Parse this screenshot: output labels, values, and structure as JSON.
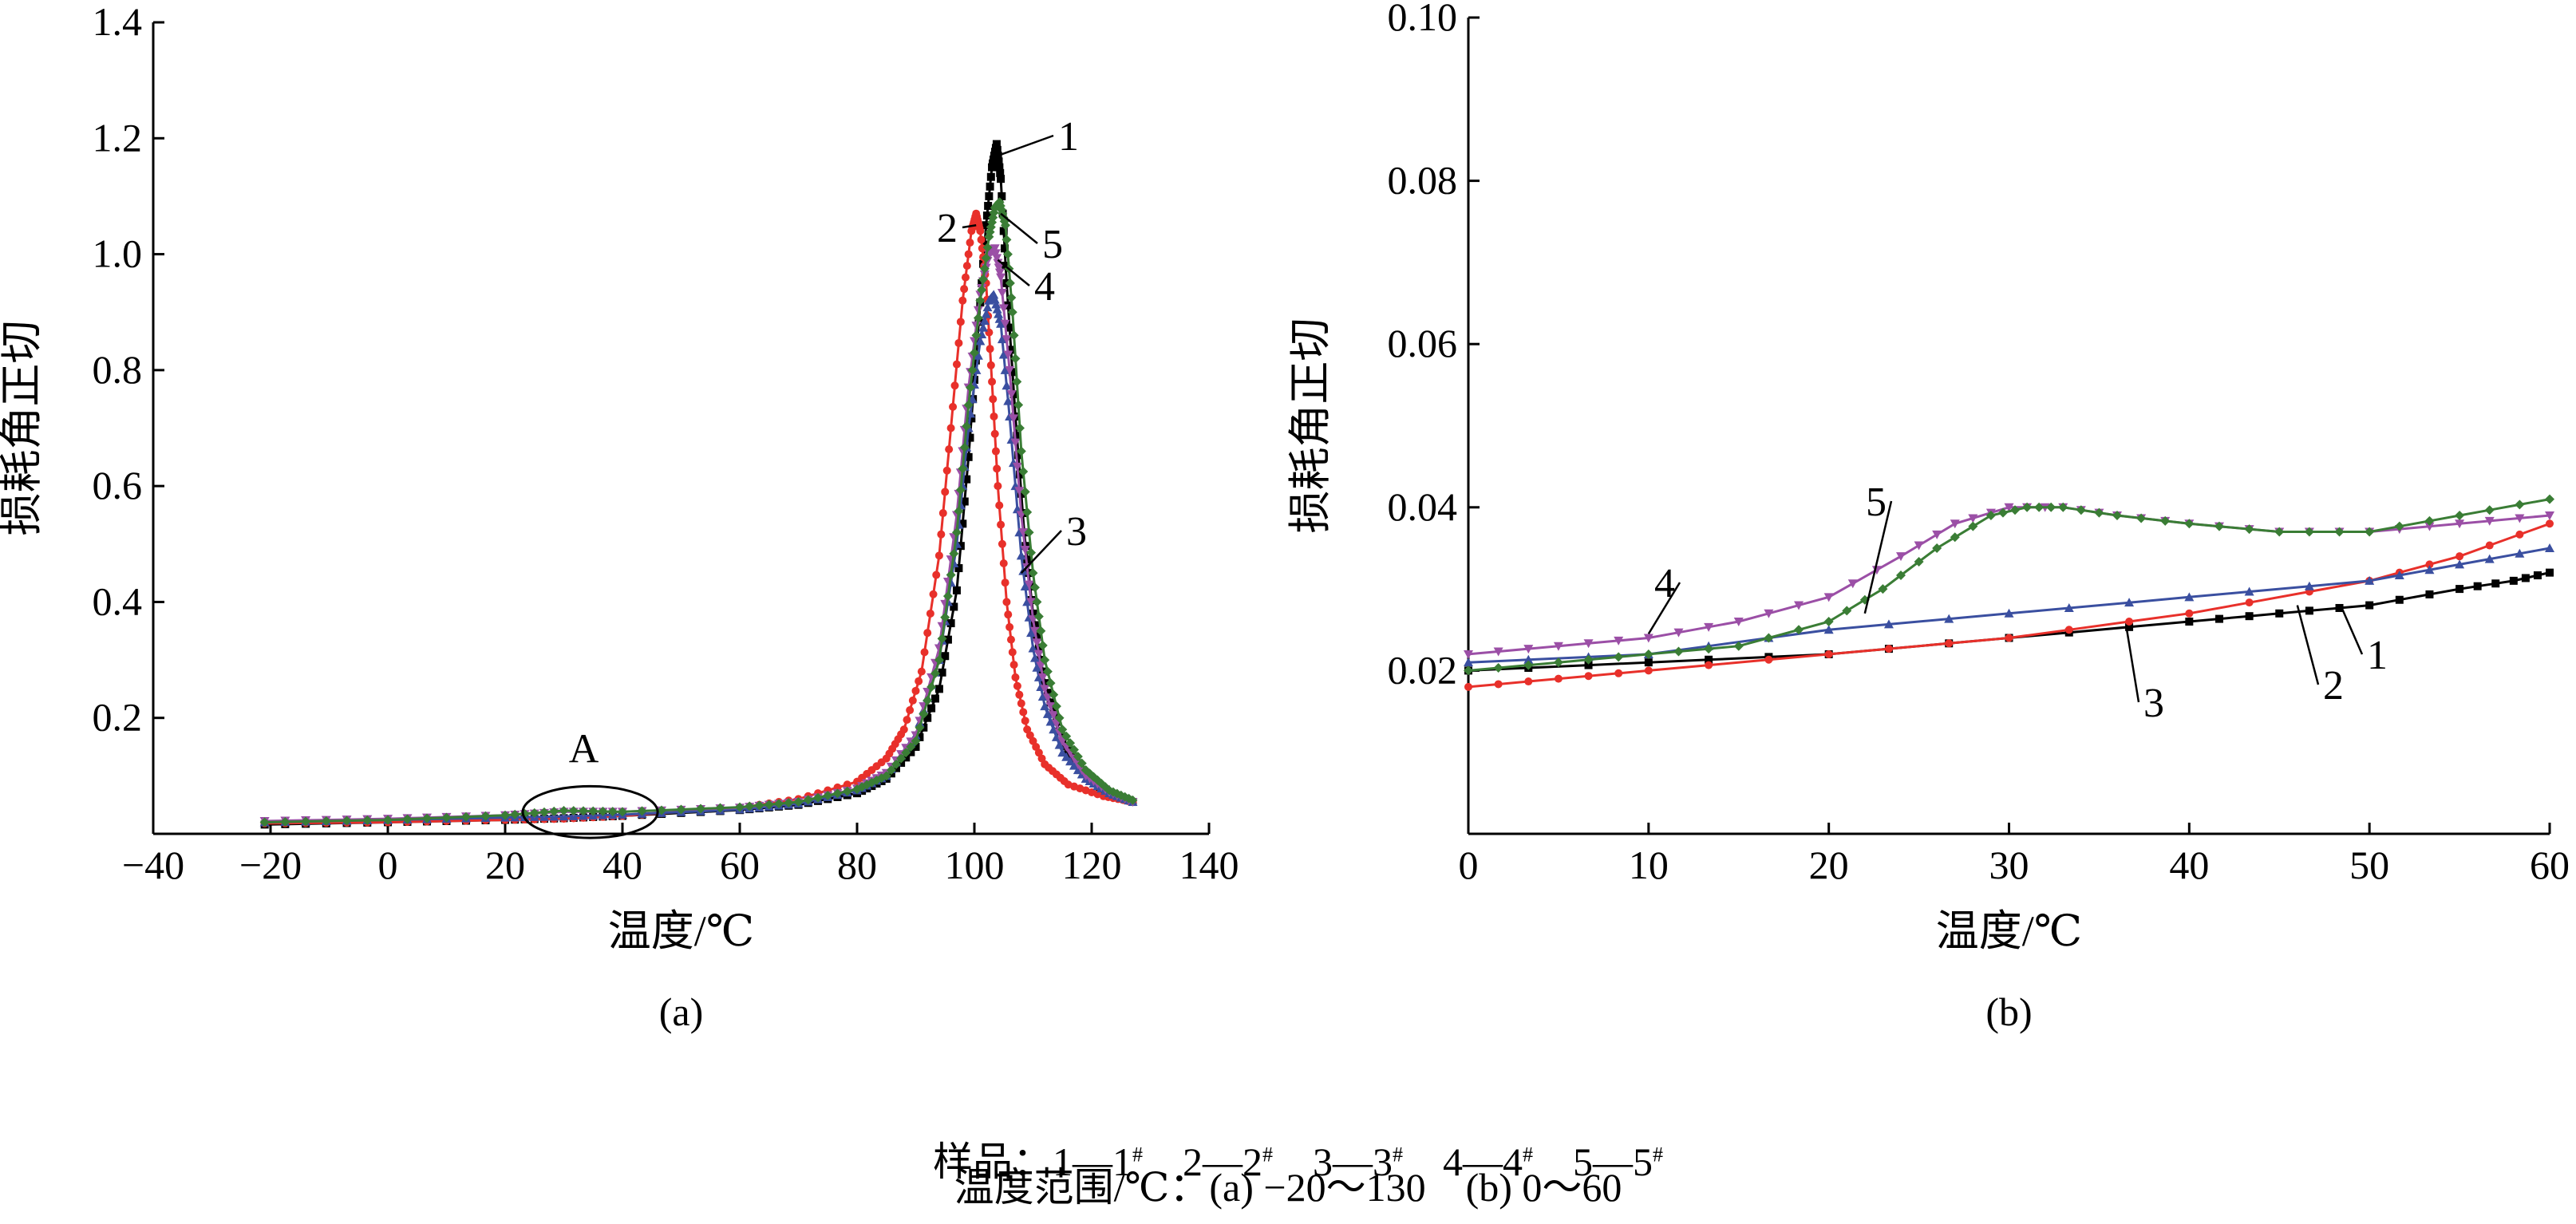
{
  "chart_data": [
    {
      "type": "line",
      "panel_label": "(a)",
      "xlabel": "温度/℃",
      "ylabel": "损耗角正切",
      "xlim": [
        -40,
        140
      ],
      "ylim": [
        0,
        1.4
      ],
      "x_ticks": [
        -40,
        -20,
        0,
        20,
        40,
        60,
        80,
        100,
        120,
        140
      ],
      "x_tick_labels": [
        "−40",
        "−20",
        "0",
        "20",
        "40",
        "60",
        "80",
        "100",
        "120",
        "140"
      ],
      "y_ticks": [
        0.2,
        0.4,
        0.6,
        0.8,
        1.0,
        1.2,
        1.4
      ],
      "y_tick_labels": [
        "0.2",
        "0.4",
        "0.6",
        "0.8",
        "1.0",
        "1.2",
        "1.4"
      ],
      "grid": false,
      "annotation": {
        "text": "A",
        "region_x": [
          23,
          46
        ],
        "region_y": [
          0.015,
          0.06
        ]
      },
      "series": [
        {
          "name": "1",
          "color": "#000000",
          "marker": "square",
          "points": [
            [
              -21,
              0.016
            ],
            [
              0,
              0.02
            ],
            [
              20,
              0.024
            ],
            [
              30,
              0.027
            ],
            [
              40,
              0.031
            ],
            [
              60,
              0.041
            ],
            [
              70,
              0.05
            ],
            [
              80,
              0.07
            ],
            [
              85,
              0.095
            ],
            [
              90,
              0.15
            ],
            [
              94,
              0.25
            ],
            [
              97,
              0.42
            ],
            [
              99,
              0.65
            ],
            [
              100.5,
              0.85
            ],
            [
              102,
              1.05
            ],
            [
              103,
              1.15
            ],
            [
              103.8,
              1.19
            ],
            [
              104.5,
              1.13
            ],
            [
              105.5,
              0.95
            ],
            [
              107,
              0.72
            ],
            [
              108.5,
              0.52
            ],
            [
              110,
              0.38
            ],
            [
              112,
              0.26
            ],
            [
              115,
              0.16
            ],
            [
              118,
              0.11
            ],
            [
              122,
              0.075
            ],
            [
              127,
              0.055
            ]
          ]
        },
        {
          "name": "2",
          "color": "#e8302a",
          "marker": "circle",
          "points": [
            [
              -21,
              0.018
            ],
            [
              0,
              0.02
            ],
            [
              20,
              0.024
            ],
            [
              30,
              0.026
            ],
            [
              40,
              0.031
            ],
            [
              60,
              0.045
            ],
            [
              70,
              0.06
            ],
            [
              80,
              0.09
            ],
            [
              85,
              0.13
            ],
            [
              88,
              0.18
            ],
            [
              91,
              0.28
            ],
            [
              94,
              0.48
            ],
            [
              96,
              0.7
            ],
            [
              98,
              0.92
            ],
            [
              99.5,
              1.04
            ],
            [
              100.3,
              1.07
            ],
            [
              101,
              1.04
            ],
            [
              102,
              0.95
            ],
            [
              103,
              0.78
            ],
            [
              104,
              0.6
            ],
            [
              105.5,
              0.4
            ],
            [
              107,
              0.27
            ],
            [
              109,
              0.18
            ],
            [
              112,
              0.12
            ],
            [
              116,
              0.085
            ],
            [
              122,
              0.065
            ],
            [
              127,
              0.055
            ]
          ]
        },
        {
          "name": "3",
          "color": "#3a4fa0",
          "marker": "triangle",
          "points": [
            [
              -21,
              0.02
            ],
            [
              0,
              0.024
            ],
            [
              20,
              0.028
            ],
            [
              30,
              0.03
            ],
            [
              40,
              0.033
            ],
            [
              60,
              0.042
            ],
            [
              70,
              0.052
            ],
            [
              80,
              0.075
            ],
            [
              85,
              0.1
            ],
            [
              90,
              0.17
            ],
            [
              94,
              0.3
            ],
            [
              97,
              0.5
            ],
            [
              99,
              0.7
            ],
            [
              101,
              0.85
            ],
            [
              102.5,
              0.92
            ],
            [
              103.3,
              0.93
            ],
            [
              104.5,
              0.88
            ],
            [
              106,
              0.72
            ],
            [
              108,
              0.48
            ],
            [
              110,
              0.32
            ],
            [
              112,
              0.22
            ],
            [
              115,
              0.14
            ],
            [
              119,
              0.095
            ],
            [
              123,
              0.07
            ],
            [
              127,
              0.055
            ]
          ]
        },
        {
          "name": "4",
          "color": "#9b4fa6",
          "marker": "down-triangle",
          "points": [
            [
              -21,
              0.022
            ],
            [
              0,
              0.026
            ],
            [
              20,
              0.032
            ],
            [
              30,
              0.038
            ],
            [
              40,
              0.038
            ],
            [
              60,
              0.045
            ],
            [
              70,
              0.055
            ],
            [
              80,
              0.078
            ],
            [
              85,
              0.105
            ],
            [
              90,
              0.17
            ],
            [
              94,
              0.32
            ],
            [
              97,
              0.55
            ],
            [
              99,
              0.77
            ],
            [
              101,
              0.93
            ],
            [
              102.5,
              1.0
            ],
            [
              103.5,
              1.01
            ],
            [
              104.5,
              0.96
            ],
            [
              106,
              0.8
            ],
            [
              108,
              0.55
            ],
            [
              110,
              0.37
            ],
            [
              112,
              0.25
            ],
            [
              115,
              0.16
            ],
            [
              119,
              0.1
            ],
            [
              123,
              0.072
            ],
            [
              127,
              0.055
            ]
          ]
        },
        {
          "name": "5",
          "color": "#3a7d35",
          "marker": "diamond",
          "points": [
            [
              -21,
              0.02
            ],
            [
              0,
              0.024
            ],
            [
              20,
              0.032
            ],
            [
              30,
              0.04
            ],
            [
              40,
              0.038
            ],
            [
              60,
              0.046
            ],
            [
              70,
              0.055
            ],
            [
              80,
              0.077
            ],
            [
              85,
              0.1
            ],
            [
              90,
              0.16
            ],
            [
              94,
              0.3
            ],
            [
              97,
              0.52
            ],
            [
              99,
              0.74
            ],
            [
              101,
              0.92
            ],
            [
              102.5,
              1.03
            ],
            [
              103.5,
              1.08
            ],
            [
              104.3,
              1.09
            ],
            [
              105.3,
              1.05
            ],
            [
              106.5,
              0.9
            ],
            [
              108,
              0.66
            ],
            [
              110,
              0.45
            ],
            [
              112,
              0.3
            ],
            [
              115,
              0.18
            ],
            [
              119,
              0.11
            ],
            [
              123,
              0.075
            ],
            [
              127,
              0.058
            ]
          ]
        }
      ]
    },
    {
      "type": "line",
      "panel_label": "(b)",
      "xlabel": "温度/℃",
      "ylabel": "损耗角正切",
      "xlim": [
        0,
        60
      ],
      "ylim": [
        0,
        0.1
      ],
      "x_ticks": [
        0,
        10,
        20,
        30,
        40,
        50,
        60
      ],
      "x_tick_labels": [
        "0",
        "10",
        "20",
        "30",
        "40",
        "50",
        "60"
      ],
      "y_ticks": [
        0.02,
        0.04,
        0.06,
        0.08,
        0.1
      ],
      "y_tick_labels": [
        "0.02",
        "0.04",
        "0.06",
        "0.08",
        "0.10"
      ],
      "grid": false,
      "series": [
        {
          "name": "1",
          "color": "#000000",
          "marker": "square",
          "points": [
            [
              0,
              0.02
            ],
            [
              10,
              0.021
            ],
            [
              20,
              0.022
            ],
            [
              30,
              0.024
            ],
            [
              40,
              0.026
            ],
            [
              45,
              0.027
            ],
            [
              50,
              0.028
            ],
            [
              55,
              0.03
            ],
            [
              58,
              0.031
            ],
            [
              60,
              0.032
            ]
          ]
        },
        {
          "name": "2",
          "color": "#e8302a",
          "marker": "circle",
          "points": [
            [
              0,
              0.018
            ],
            [
              5,
              0.019
            ],
            [
              10,
              0.02
            ],
            [
              20,
              0.022
            ],
            [
              30,
              0.024
            ],
            [
              40,
              0.027
            ],
            [
              50,
              0.031
            ],
            [
              55,
              0.034
            ],
            [
              60,
              0.038
            ]
          ]
        },
        {
          "name": "3",
          "color": "#3a4fa0",
          "marker": "triangle",
          "points": [
            [
              0,
              0.021
            ],
            [
              10,
              0.022
            ],
            [
              20,
              0.025
            ],
            [
              30,
              0.027
            ],
            [
              40,
              0.029
            ],
            [
              50,
              0.031
            ],
            [
              55,
              0.033
            ],
            [
              60,
              0.035
            ]
          ]
        },
        {
          "name": "4",
          "color": "#9b4fa6",
          "marker": "down-triangle",
          "points": [
            [
              0,
              0.022
            ],
            [
              5,
              0.023
            ],
            [
              10,
              0.024
            ],
            [
              15,
              0.026
            ],
            [
              20,
              0.029
            ],
            [
              24,
              0.034
            ],
            [
              27,
              0.038
            ],
            [
              30,
              0.04
            ],
            [
              33,
              0.04
            ],
            [
              36,
              0.039
            ],
            [
              40,
              0.038
            ],
            [
              45,
              0.037
            ],
            [
              50,
              0.037
            ],
            [
              55,
              0.038
            ],
            [
              60,
              0.039
            ]
          ]
        },
        {
          "name": "5",
          "color": "#3a7d35",
          "marker": "diamond",
          "points": [
            [
              0,
              0.02
            ],
            [
              5,
              0.021
            ],
            [
              10,
              0.022
            ],
            [
              15,
              0.023
            ],
            [
              20,
              0.026
            ],
            [
              23,
              0.03
            ],
            [
              26,
              0.035
            ],
            [
              29,
              0.039
            ],
            [
              31,
              0.04
            ],
            [
              33,
              0.04
            ],
            [
              36,
              0.039
            ],
            [
              40,
              0.038
            ],
            [
              45,
              0.037
            ],
            [
              50,
              0.037
            ],
            [
              55,
              0.039
            ],
            [
              60,
              0.041
            ]
          ]
        }
      ]
    }
  ],
  "legend": {
    "prefix": "样品：",
    "items": [
      {
        "label": "1—1",
        "sup": "#"
      },
      {
        "label": "2—2",
        "sup": "#"
      },
      {
        "label": "3—3",
        "sup": "#"
      },
      {
        "label": "4—4",
        "sup": "#"
      },
      {
        "label": "5—5",
        "sup": "#"
      }
    ]
  },
  "caption_range": "温度范围/℃：(a) −20～130    (b) 0～60"
}
